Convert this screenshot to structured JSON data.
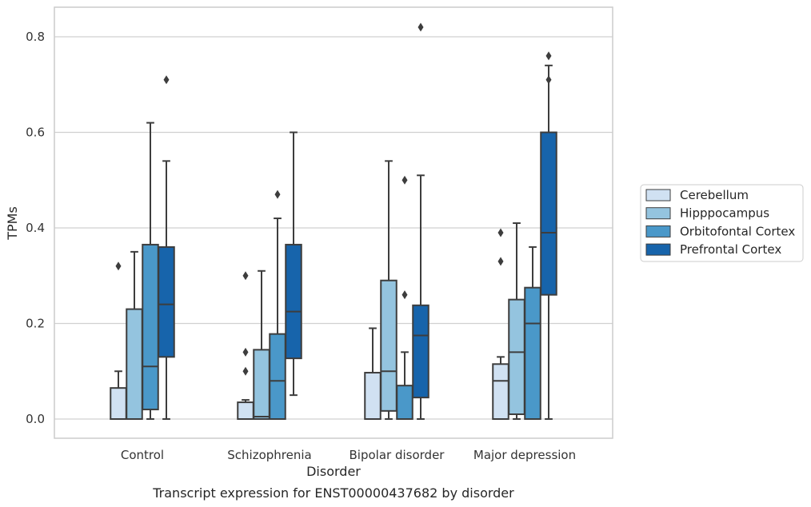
{
  "caption": "Transcript expression for ENST00000437682 by disorder",
  "chart_data": {
    "type": "box",
    "xlabel": "Disorder",
    "ylabel": "TPMs",
    "ylim": [
      -0.04,
      0.86
    ],
    "yticks": [
      "0.0",
      "0.2",
      "0.4",
      "0.6",
      "0.8"
    ],
    "ytick_values": [
      0.0,
      0.2,
      0.4,
      0.6,
      0.8
    ],
    "grid": true,
    "legend_position": "right",
    "categories": [
      "Control",
      "Schizophrenia",
      "Bipolar disorder",
      "Major depression"
    ],
    "series": [
      {
        "name": "Cerebellum",
        "color": "#d0e1f2",
        "boxes": [
          {
            "whisker_low": 0.0,
            "q1": 0.0,
            "median": 0.0,
            "q3": 0.065,
            "whisker_high": 0.1,
            "outliers": [
              0.32
            ]
          },
          {
            "whisker_low": 0.0,
            "q1": 0.0,
            "median": 0.0,
            "q3": 0.035,
            "whisker_high": 0.04,
            "outliers": [
              0.1,
              0.14,
              0.3
            ]
          },
          {
            "whisker_low": 0.0,
            "q1": 0.0,
            "median": 0.0,
            "q3": 0.097,
            "whisker_high": 0.19,
            "outliers": []
          },
          {
            "whisker_low": 0.0,
            "q1": 0.0,
            "median": 0.08,
            "q3": 0.115,
            "whisker_high": 0.13,
            "outliers": [
              0.33,
              0.39
            ]
          }
        ]
      },
      {
        "name": "Hipppocampus",
        "color": "#94c4df",
        "boxes": [
          {
            "whisker_low": 0.0,
            "q1": 0.0,
            "median": 0.0,
            "q3": 0.23,
            "whisker_high": 0.35,
            "outliers": []
          },
          {
            "whisker_low": 0.0,
            "q1": 0.0,
            "median": 0.005,
            "q3": 0.145,
            "whisker_high": 0.31,
            "outliers": []
          },
          {
            "whisker_low": 0.0,
            "q1": 0.017,
            "median": 0.1,
            "q3": 0.29,
            "whisker_high": 0.54,
            "outliers": []
          },
          {
            "whisker_low": 0.0,
            "q1": 0.01,
            "median": 0.14,
            "q3": 0.25,
            "whisker_high": 0.41,
            "outliers": []
          }
        ]
      },
      {
        "name": "Orbitofontal Cortex",
        "color": "#4a98c9",
        "boxes": [
          {
            "whisker_low": 0.0,
            "q1": 0.02,
            "median": 0.11,
            "q3": 0.365,
            "whisker_high": 0.62,
            "outliers": []
          },
          {
            "whisker_low": 0.0,
            "q1": 0.0,
            "median": 0.08,
            "q3": 0.178,
            "whisker_high": 0.42,
            "outliers": [
              0.47
            ]
          },
          {
            "whisker_low": 0.0,
            "q1": 0.0,
            "median": 0.0,
            "q3": 0.07,
            "whisker_high": 0.14,
            "outliers": [
              0.26,
              0.5
            ]
          },
          {
            "whisker_low": 0.0,
            "q1": 0.0,
            "median": 0.2,
            "q3": 0.275,
            "whisker_high": 0.36,
            "outliers": []
          }
        ]
      },
      {
        "name": "Prefrontal Cortex",
        "color": "#1764ab",
        "boxes": [
          {
            "whisker_low": 0.0,
            "q1": 0.13,
            "median": 0.24,
            "q3": 0.36,
            "whisker_high": 0.54,
            "outliers": [
              0.71
            ]
          },
          {
            "whisker_low": 0.05,
            "q1": 0.127,
            "median": 0.225,
            "q3": 0.365,
            "whisker_high": 0.6,
            "outliers": []
          },
          {
            "whisker_low": 0.0,
            "q1": 0.045,
            "median": 0.175,
            "q3": 0.238,
            "whisker_high": 0.51,
            "outliers": [
              0.82
            ]
          },
          {
            "whisker_low": 0.0,
            "q1": 0.26,
            "median": 0.39,
            "q3": 0.6,
            "whisker_high": 0.74,
            "outliers": [
              0.71,
              0.76
            ]
          }
        ]
      }
    ]
  }
}
